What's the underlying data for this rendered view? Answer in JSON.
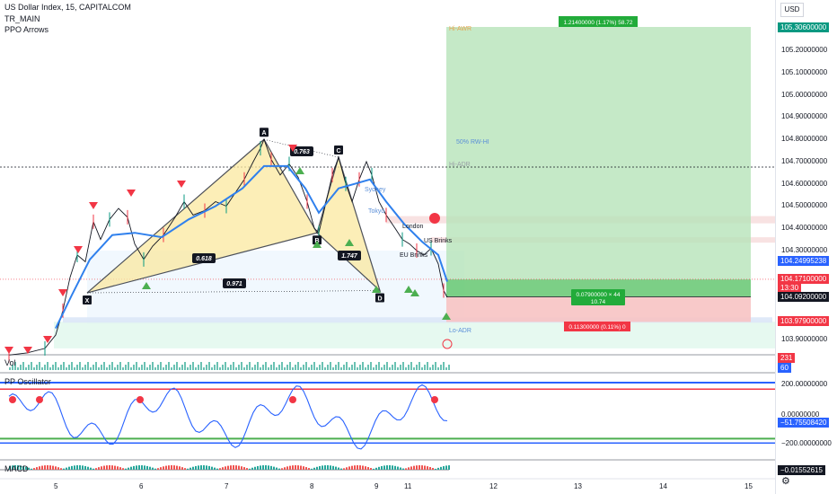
{
  "header": {
    "symbol": "US Dollar Index, 15, CAPITALCOM",
    "ind1": "TR_MAIN",
    "ind2": "PPO Arrows",
    "currency": "USD"
  },
  "panes": {
    "vol": "Vol",
    "osc": "PP Oscillator",
    "macd": "MACD"
  },
  "chart_data": {
    "type": "candlestick",
    "price_ticks": [
      "105.30600000",
      "105.20000000",
      "105.10000000",
      "105.00000000",
      "104.90000000",
      "104.80000000",
      "104.70000000",
      "104.60000000",
      "104.50000000",
      "104.40000000",
      "104.30000000",
      "104.24995238",
      "104.17100000",
      "104.09200000",
      "103.97900000",
      "103.90000000"
    ],
    "price_axis_range": [
      103.84,
      105.35
    ],
    "x_ticks": [
      "5",
      "6",
      "7",
      "8",
      "9",
      "11",
      "12",
      "13",
      "14",
      "15"
    ],
    "right_tags": [
      {
        "label": "105.30600000",
        "color": "#089981"
      },
      {
        "label": "104.24995238",
        "color": "#2962ff"
      },
      {
        "label": "104.17100000",
        "color": "#f23645"
      },
      {
        "label": "13:30",
        "color": "#f23645"
      },
      {
        "label": "104.09200000",
        "color": "#131722"
      },
      {
        "label": "103.97900000",
        "color": "#f23645"
      }
    ],
    "vol_tags": [
      {
        "label": "231",
        "color": "#f23645"
      },
      {
        "label": "60",
        "color": "#2962ff"
      }
    ],
    "osc_ticks": [
      "200.00000000",
      "0.00000000",
      "−200.00000000"
    ],
    "osc_tag": "−51.75508420",
    "macd_tag": "−0.01552615",
    "harmonic_points": [
      "X",
      "A",
      "B",
      "C",
      "D"
    ],
    "harmonic_ratios": [
      "0.763",
      "0.618",
      "1.747",
      "0.971"
    ],
    "position": {
      "target_label": "1.21400000 (1.17%) 58.72",
      "stop_label": "0.11300000 (0.11%) 0",
      "open_pl_line1": "0.07900000 × 44",
      "open_pl_line2": "10.74",
      "entry": 104.092,
      "target": 105.306,
      "stop": 103.979
    },
    "annotations": [
      "Hi-AWR",
      "50% RW-HI",
      "Hi-ADR",
      "Sydney",
      "Tokyo",
      "London",
      "Lo-ADR",
      "EU Brinks",
      "US Brinks"
    ],
    "pattern_points": [
      {
        "name": "X",
        "x": 97,
        "price": 104.11
      },
      {
        "name": "A",
        "x": 294,
        "price": 104.8
      },
      {
        "name": "B",
        "x": 353,
        "price": 104.38
      },
      {
        "name": "C",
        "x": 377,
        "price": 104.72
      },
      {
        "name": "D",
        "x": 423,
        "price": 104.12
      }
    ],
    "price_path": [
      [
        10,
        103.83
      ],
      [
        30,
        103.84
      ],
      [
        50,
        103.86
      ],
      [
        62,
        103.92
      ],
      [
        70,
        104.03
      ],
      [
        78,
        104.18
      ],
      [
        86,
        104.28
      ],
      [
        95,
        104.25
      ],
      [
        104,
        104.43
      ],
      [
        112,
        104.35
      ],
      [
        122,
        104.44
      ],
      [
        132,
        104.49
      ],
      [
        142,
        104.45
      ],
      [
        150,
        104.33
      ],
      [
        160,
        104.26
      ],
      [
        170,
        104.32
      ],
      [
        182,
        104.37
      ],
      [
        195,
        104.45
      ],
      [
        205,
        104.52
      ],
      [
        215,
        104.46
      ],
      [
        228,
        104.48
      ],
      [
        240,
        104.52
      ],
      [
        252,
        104.5
      ],
      [
        262,
        104.56
      ],
      [
        272,
        104.62
      ],
      [
        282,
        104.7
      ],
      [
        290,
        104.76
      ],
      [
        294,
        104.8
      ],
      [
        302,
        104.71
      ],
      [
        312,
        104.64
      ],
      [
        322,
        104.69
      ],
      [
        332,
        104.63
      ],
      [
        342,
        104.52
      ],
      [
        350,
        104.4
      ],
      [
        355,
        104.38
      ],
      [
        362,
        104.5
      ],
      [
        370,
        104.64
      ],
      [
        377,
        104.72
      ],
      [
        385,
        104.6
      ],
      [
        392,
        104.52
      ],
      [
        400,
        104.62
      ],
      [
        408,
        104.7
      ],
      [
        414,
        104.64
      ],
      [
        422,
        104.52
      ],
      [
        430,
        104.46
      ],
      [
        440,
        104.4
      ],
      [
        448,
        104.35
      ],
      [
        456,
        104.33
      ],
      [
        464,
        104.3
      ],
      [
        472,
        104.28
      ],
      [
        480,
        104.31
      ],
      [
        488,
        104.24
      ],
      [
        494,
        104.12
      ],
      [
        498,
        104.09
      ]
    ],
    "ma_path": [
      [
        62,
        103.95
      ],
      [
        80,
        104.1
      ],
      [
        100,
        104.26
      ],
      [
        125,
        104.37
      ],
      [
        150,
        104.38
      ],
      [
        180,
        104.36
      ],
      [
        210,
        104.44
      ],
      [
        240,
        104.5
      ],
      [
        270,
        104.58
      ],
      [
        294,
        104.68
      ],
      [
        320,
        104.68
      ],
      [
        340,
        104.58
      ],
      [
        355,
        104.47
      ],
      [
        377,
        104.58
      ],
      [
        395,
        104.6
      ],
      [
        412,
        104.62
      ],
      [
        430,
        104.52
      ],
      [
        450,
        104.42
      ],
      [
        470,
        104.34
      ],
      [
        488,
        104.28
      ],
      [
        498,
        104.16
      ]
    ]
  }
}
